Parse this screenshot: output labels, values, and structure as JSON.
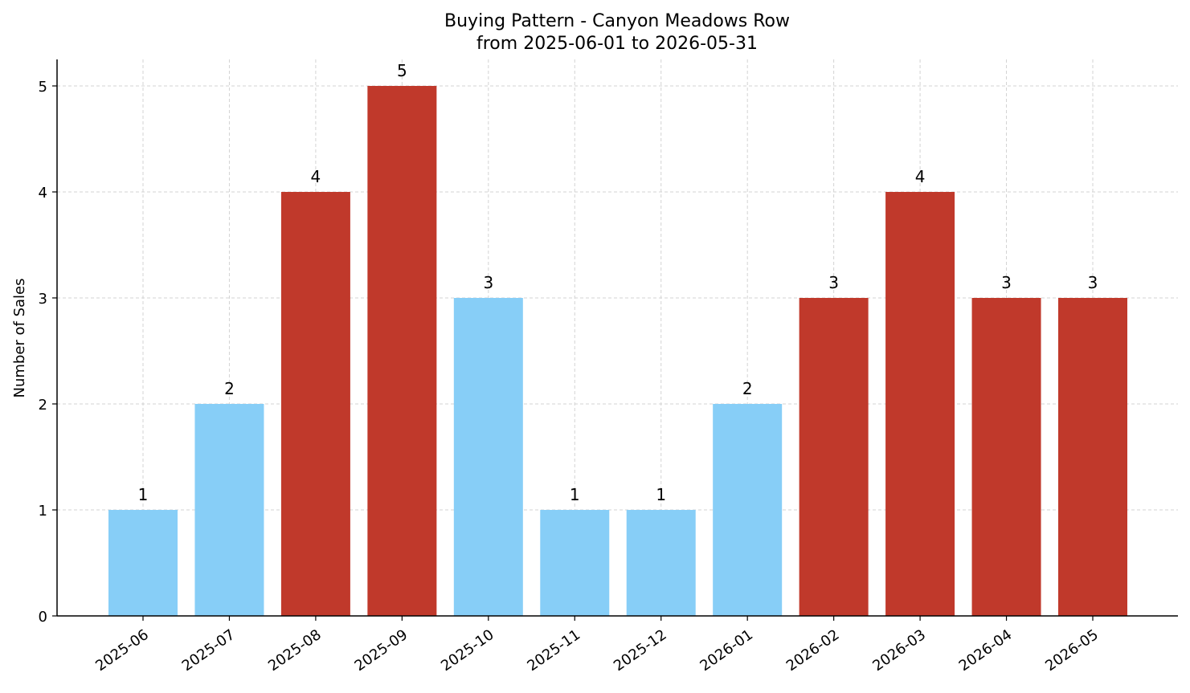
{
  "chart_data": {
    "type": "bar",
    "title": "Buying Pattern - Canyon Meadows Row",
    "subtitle": "from 2025-06-01 to 2026-05-31",
    "xlabel": "",
    "ylabel": "Number of Sales",
    "categories": [
      "2025-06",
      "2025-07",
      "2025-08",
      "2025-09",
      "2025-10",
      "2025-11",
      "2025-12",
      "2026-01",
      "2026-02",
      "2026-03",
      "2026-04",
      "2026-05"
    ],
    "values": [
      1,
      2,
      4,
      5,
      3,
      1,
      1,
      2,
      3,
      4,
      3,
      3
    ],
    "bar_colors": [
      "#87CEF7",
      "#87CEF7",
      "#C0392B",
      "#C0392B",
      "#87CEF7",
      "#87CEF7",
      "#87CEF7",
      "#87CEF7",
      "#C0392B",
      "#C0392B",
      "#C0392B",
      "#C0392B"
    ],
    "data_labels": [
      "1",
      "2",
      "4",
      "5",
      "3",
      "1",
      "1",
      "2",
      "3",
      "4",
      "3",
      "3"
    ],
    "ylim": [
      0,
      5.25
    ],
    "yticks": [
      0,
      1,
      2,
      3,
      4,
      5
    ],
    "grid": true,
    "grid_color": "#d3d3d3",
    "legend": "none"
  }
}
